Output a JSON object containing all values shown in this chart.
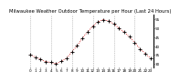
{
  "title": "Milwaukee Weather Outdoor Temperature per Hour (Last 24 Hours)",
  "hours": [
    0,
    1,
    2,
    3,
    4,
    5,
    6,
    7,
    8,
    9,
    10,
    11,
    12,
    13,
    14,
    15,
    16,
    17,
    18,
    19,
    20,
    21,
    22,
    23
  ],
  "temps": [
    35.2,
    33.8,
    32.5,
    31.2,
    30.8,
    30.1,
    31.5,
    33.2,
    36.8,
    40.2,
    44.5,
    48.1,
    51.3,
    53.8,
    54.9,
    54.2,
    52.6,
    50.1,
    47.8,
    45.2,
    42.0,
    38.5,
    35.8,
    33.2
  ],
  "ylim": [
    28,
    58
  ],
  "yticks": [
    30,
    35,
    40,
    45,
    50,
    55
  ],
  "grid_hours": [
    0,
    4,
    8,
    12,
    16,
    20
  ],
  "bg_color": "#ffffff",
  "line_color": "#cc0000",
  "marker_color": "#000000",
  "tick_color": "#000000",
  "title_fontsize": 3.8,
  "axis_fontsize": 3.0
}
